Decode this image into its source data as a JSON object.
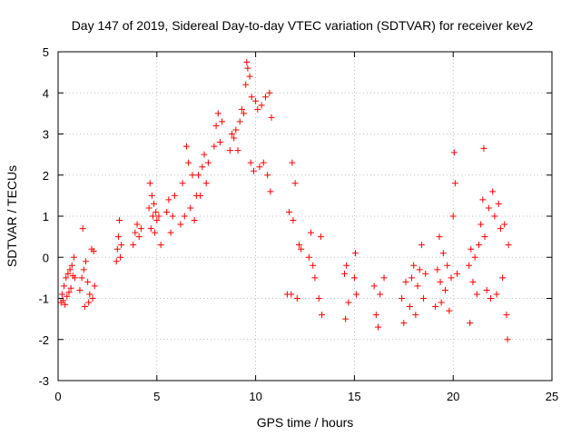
{
  "chart_data": {
    "type": "scatter",
    "title": "Day 147 of 2019, Sidereal Day-to-day VTEC variation (SDTVAR) for receiver kev2",
    "xlabel": "GPS time / hours",
    "ylabel": "SDTVAR / TECUs",
    "xlim": [
      0,
      25
    ],
    "ylim": [
      -3,
      5
    ],
    "xticks": [
      0,
      5,
      10,
      15,
      20,
      25
    ],
    "yticks": [
      -3,
      -2,
      -1,
      0,
      1,
      2,
      3,
      4,
      5
    ],
    "xtick_labels": [
      "0",
      "5",
      "10",
      "15",
      "20",
      "25"
    ],
    "ytick_labels": [
      "-3",
      "-2",
      "-1",
      "0",
      "1",
      "2",
      "3",
      "4",
      "5"
    ],
    "grid": true,
    "marker": "+",
    "color": "#ff0000",
    "series": [
      {
        "name": "kev2",
        "points": [
          [
            0.15,
            -1.1
          ],
          [
            0.2,
            -0.9
          ],
          [
            0.25,
            -1.05
          ],
          [
            0.3,
            -0.7
          ],
          [
            0.35,
            -1.15
          ],
          [
            0.4,
            -0.5
          ],
          [
            0.45,
            -0.95
          ],
          [
            0.5,
            -0.4
          ],
          [
            0.55,
            -0.85
          ],
          [
            0.6,
            -0.3
          ],
          [
            0.65,
            -0.75
          ],
          [
            0.7,
            -0.2
          ],
          [
            0.75,
            -0.45
          ],
          [
            0.8,
            0.0
          ],
          [
            0.85,
            -0.5
          ],
          [
            1.1,
            -0.8
          ],
          [
            1.2,
            -0.5
          ],
          [
            1.25,
            0.7
          ],
          [
            1.3,
            -0.3
          ],
          [
            1.35,
            -1.2
          ],
          [
            1.4,
            -0.1
          ],
          [
            1.5,
            -0.6
          ],
          [
            1.55,
            -1.1
          ],
          [
            1.6,
            -0.9
          ],
          [
            1.7,
            0.2
          ],
          [
            1.75,
            -1.0
          ],
          [
            1.8,
            0.15
          ],
          [
            1.85,
            -0.7
          ],
          [
            2.95,
            -0.1
          ],
          [
            3.0,
            0.2
          ],
          [
            3.05,
            0.5
          ],
          [
            3.1,
            0.9
          ],
          [
            3.15,
            0.0
          ],
          [
            3.2,
            0.3
          ],
          [
            3.8,
            0.3
          ],
          [
            3.9,
            0.6
          ],
          [
            4.0,
            0.8
          ],
          [
            4.1,
            0.5
          ],
          [
            4.2,
            0.7
          ],
          [
            4.6,
            1.2
          ],
          [
            4.65,
            1.8
          ],
          [
            4.7,
            0.7
          ],
          [
            4.75,
            1.5
          ],
          [
            4.8,
            1.0
          ],
          [
            4.85,
            1.3
          ],
          [
            4.9,
            0.6
          ],
          [
            4.95,
            1.1
          ],
          [
            5.0,
            0.9
          ],
          [
            5.1,
            1.0
          ],
          [
            5.2,
            0.3
          ],
          [
            5.5,
            1.1
          ],
          [
            5.6,
            1.4
          ],
          [
            5.7,
            0.6
          ],
          [
            5.8,
            1.0
          ],
          [
            5.9,
            1.5
          ],
          [
            6.2,
            0.8
          ],
          [
            6.3,
            1.8
          ],
          [
            6.4,
            1.0
          ],
          [
            6.5,
            2.7
          ],
          [
            6.6,
            2.3
          ],
          [
            6.7,
            1.2
          ],
          [
            6.8,
            2.0
          ],
          [
            6.9,
            0.9
          ],
          [
            7.0,
            1.5
          ],
          [
            7.1,
            2.0
          ],
          [
            7.2,
            1.5
          ],
          [
            7.3,
            2.2
          ],
          [
            7.4,
            2.5
          ],
          [
            7.5,
            1.8
          ],
          [
            7.6,
            2.3
          ],
          [
            7.9,
            2.7
          ],
          [
            8.0,
            3.2
          ],
          [
            8.1,
            3.5
          ],
          [
            8.2,
            2.8
          ],
          [
            8.3,
            3.3
          ],
          [
            8.7,
            2.6
          ],
          [
            8.8,
            3.0
          ],
          [
            8.9,
            2.9
          ],
          [
            9.0,
            3.1
          ],
          [
            9.1,
            2.6
          ],
          [
            9.2,
            3.3
          ],
          [
            9.3,
            3.6
          ],
          [
            9.4,
            3.5
          ],
          [
            9.5,
            4.2
          ],
          [
            9.55,
            4.75
          ],
          [
            9.6,
            4.6
          ],
          [
            9.7,
            4.4
          ],
          [
            9.75,
            2.3
          ],
          [
            9.8,
            3.9
          ],
          [
            9.9,
            2.1
          ],
          [
            10.0,
            3.8
          ],
          [
            10.1,
            3.6
          ],
          [
            10.2,
            2.2
          ],
          [
            10.3,
            3.7
          ],
          [
            10.4,
            2.3
          ],
          [
            10.5,
            3.9
          ],
          [
            10.6,
            2.0
          ],
          [
            10.7,
            4.0
          ],
          [
            10.75,
            1.6
          ],
          [
            10.8,
            3.4
          ],
          [
            11.6,
            -0.9
          ],
          [
            11.7,
            1.1
          ],
          [
            11.8,
            -0.9
          ],
          [
            11.85,
            2.3
          ],
          [
            11.9,
            0.9
          ],
          [
            12.0,
            1.8
          ],
          [
            12.1,
            -1.0
          ],
          [
            12.2,
            0.3
          ],
          [
            12.3,
            0.2
          ],
          [
            12.7,
            0.0
          ],
          [
            12.8,
            0.6
          ],
          [
            12.9,
            -0.2
          ],
          [
            13.0,
            -0.5
          ],
          [
            13.2,
            -1.0
          ],
          [
            13.3,
            0.5
          ],
          [
            13.35,
            -1.4
          ],
          [
            14.5,
            -0.4
          ],
          [
            14.55,
            -1.5
          ],
          [
            14.6,
            -0.2
          ],
          [
            14.7,
            -1.1
          ],
          [
            15.0,
            -0.5
          ],
          [
            15.05,
            0.1
          ],
          [
            15.1,
            -0.9
          ],
          [
            16.0,
            -0.7
          ],
          [
            16.1,
            -1.4
          ],
          [
            16.2,
            -1.7
          ],
          [
            16.3,
            -0.9
          ],
          [
            16.5,
            -0.5
          ],
          [
            17.4,
            -1.0
          ],
          [
            17.5,
            -1.6
          ],
          [
            17.6,
            -0.6
          ],
          [
            17.8,
            -1.2
          ],
          [
            17.9,
            -0.5
          ],
          [
            18.0,
            -0.2
          ],
          [
            18.1,
            -1.4
          ],
          [
            18.2,
            -0.7
          ],
          [
            18.3,
            -0.3
          ],
          [
            18.4,
            0.3
          ],
          [
            18.5,
            -1.0
          ],
          [
            18.6,
            -0.4
          ],
          [
            19.1,
            -1.2
          ],
          [
            19.2,
            -0.3
          ],
          [
            19.3,
            0.5
          ],
          [
            19.35,
            -0.6
          ],
          [
            19.4,
            -1.1
          ],
          [
            19.5,
            0.1
          ],
          [
            19.6,
            -0.8
          ],
          [
            19.7,
            -0.2
          ],
          [
            19.8,
            -1.3
          ],
          [
            19.9,
            -0.5
          ],
          [
            20.0,
            1.0
          ],
          [
            20.05,
            2.55
          ],
          [
            20.1,
            1.8
          ],
          [
            20.2,
            -0.4
          ],
          [
            20.8,
            -0.2
          ],
          [
            20.85,
            -1.6
          ],
          [
            20.9,
            0.2
          ],
          [
            21.0,
            -0.6
          ],
          [
            21.1,
            0.0
          ],
          [
            21.2,
            -0.9
          ],
          [
            21.3,
            0.3
          ],
          [
            21.4,
            0.8
          ],
          [
            21.5,
            1.4
          ],
          [
            21.55,
            2.65
          ],
          [
            21.6,
            0.5
          ],
          [
            21.7,
            -0.8
          ],
          [
            21.8,
            1.2
          ],
          [
            21.9,
            -1.0
          ],
          [
            22.0,
            1.6
          ],
          [
            22.1,
            1.0
          ],
          [
            22.2,
            -0.9
          ],
          [
            22.3,
            1.3
          ],
          [
            22.4,
            0.7
          ],
          [
            22.5,
            -0.5
          ],
          [
            22.6,
            0.8
          ],
          [
            22.7,
            -1.4
          ],
          [
            22.75,
            -2.0
          ],
          [
            22.8,
            0.3
          ]
        ]
      }
    ]
  }
}
